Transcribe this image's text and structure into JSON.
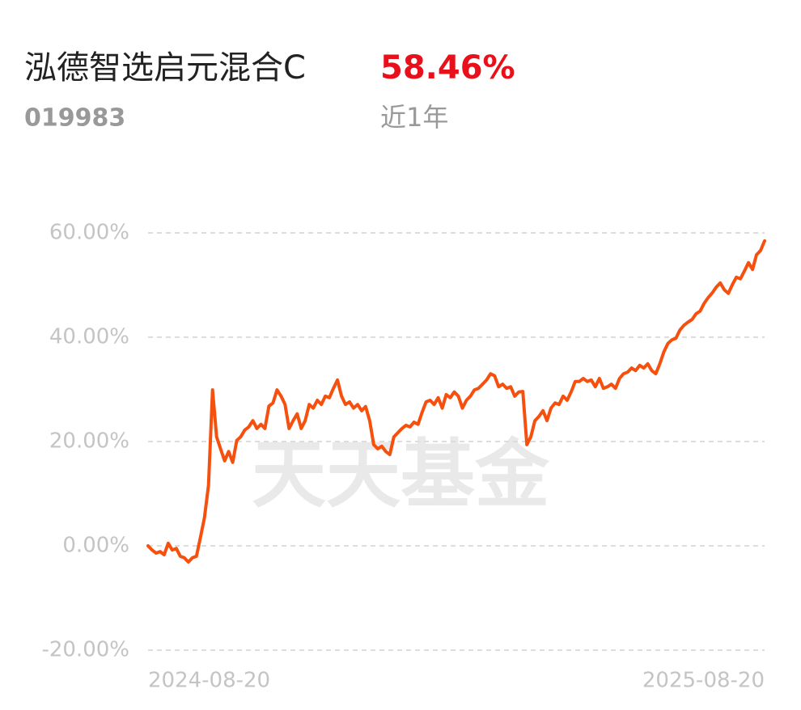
{
  "header": {
    "title": "泓德智选启元混合C",
    "return": "58.46%",
    "code": "019983",
    "period": "近1年"
  },
  "chart_data": {
    "type": "line",
    "watermark": "天天基金",
    "categories": [
      "2024-08-20",
      null,
      null,
      null,
      null,
      null,
      null,
      null,
      null,
      null,
      null,
      null,
      null,
      null,
      null,
      null,
      null,
      null,
      null,
      null,
      null,
      null,
      null,
      null,
      null,
      null,
      null,
      null,
      null,
      null,
      null,
      null,
      null,
      null,
      null,
      null,
      null,
      null,
      null,
      null,
      null,
      null,
      null,
      null,
      null,
      null,
      null,
      null,
      null,
      null,
      null,
      null,
      null,
      null,
      null,
      null,
      null,
      null,
      null,
      null,
      null,
      null,
      null,
      null,
      null,
      null,
      null,
      null,
      null,
      null,
      null,
      null,
      null,
      null,
      null,
      null,
      null,
      null,
      null,
      null,
      null,
      null,
      null,
      null,
      null,
      null,
      null,
      null,
      null,
      null,
      null,
      null,
      null,
      null,
      null,
      null,
      null,
      null,
      null,
      null,
      null,
      null,
      null,
      null,
      null,
      null,
      null,
      null,
      null,
      null,
      null,
      null,
      null,
      null,
      null,
      null,
      null,
      null,
      null,
      null,
      null,
      null,
      null,
      null,
      null,
      null,
      null,
      null,
      null,
      null,
      null,
      null,
      null,
      null,
      null,
      null,
      null,
      null,
      null,
      null,
      null,
      null,
      null,
      null,
      null,
      null,
      null,
      null,
      null,
      null,
      null,
      null,
      null,
      "2025-08-20"
    ],
    "series": [
      {
        "color": "#f6500f",
        "values": [
          0,
          -0.8,
          -1.4,
          -1.1,
          -1.7,
          0.5,
          -0.8,
          -0.5,
          -2.0,
          -2.3,
          -3.1,
          -2.3,
          -2.0,
          1.6,
          5.4,
          11.6,
          29.9,
          20.9,
          18.6,
          16.3,
          18.1,
          16.0,
          20.2,
          20.9,
          22.2,
          22.8,
          24.0,
          22.5,
          23.3,
          22.5,
          26.8,
          27.4,
          29.9,
          28.7,
          27.1,
          22.5,
          24.0,
          25.3,
          22.5,
          24.0,
          27.1,
          26.4,
          27.9,
          27.1,
          28.7,
          28.4,
          30.2,
          31.8,
          28.7,
          27.1,
          27.6,
          26.4,
          27.1,
          25.9,
          26.7,
          24.0,
          19.4,
          18.6,
          19.1,
          18.1,
          17.5,
          20.9,
          21.7,
          22.5,
          23.1,
          22.8,
          23.7,
          23.3,
          25.6,
          27.6,
          27.9,
          27.1,
          28.4,
          26.4,
          29.0,
          28.4,
          29.5,
          28.7,
          26.4,
          27.9,
          28.7,
          29.9,
          30.2,
          31.0,
          31.8,
          33.0,
          32.6,
          30.5,
          31.0,
          30.2,
          30.5,
          28.7,
          29.5,
          29.6,
          19.4,
          20.9,
          24.0,
          24.8,
          25.9,
          24.0,
          26.4,
          27.4,
          27.1,
          28.7,
          27.9,
          29.5,
          31.5,
          31.5,
          32.1,
          31.5,
          31.8,
          30.5,
          32.1,
          30.2,
          30.5,
          31.0,
          30.2,
          32.1,
          33.0,
          33.3,
          34.1,
          33.6,
          34.6,
          34.1,
          34.9,
          33.6,
          33.0,
          34.9,
          37.2,
          38.8,
          39.5,
          39.8,
          41.4,
          42.3,
          42.9,
          43.4,
          44.5,
          45.0,
          46.5,
          47.6,
          48.5,
          49.6,
          50.4,
          49.1,
          48.4,
          50.1,
          51.5,
          51.2,
          52.7,
          54.3,
          53.0,
          55.8,
          56.6,
          58.46
        ]
      }
    ],
    "ylim": [
      -20,
      60
    ],
    "yticks": [
      {
        "value": -20,
        "label": "-20.00%"
      },
      {
        "value": 0,
        "label": "0.00%"
      },
      {
        "value": 20,
        "label": "20.00%"
      },
      {
        "value": 40,
        "label": "40.00%"
      },
      {
        "value": 60,
        "label": "60.00%"
      }
    ],
    "grid": true
  }
}
